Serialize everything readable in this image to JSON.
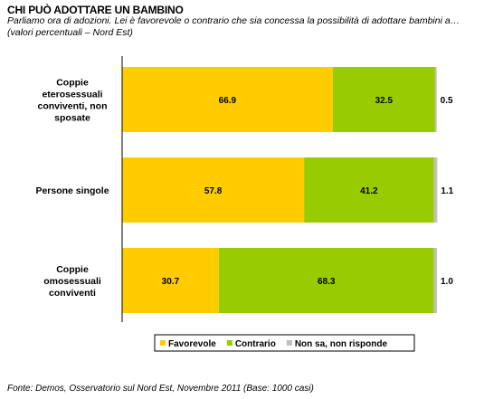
{
  "title": "CHI PUÒ ADOTTARE UN BAMBINO",
  "subtitle": "Parliamo ora di adozioni. Lei è favorevole o contrario che sia concessa la possibilità di adottare bambini a… (valori percentuali – Nord Est)",
  "source": "Fonte: Demos, Osservatorio sul Nord Est, Novembre  2011 (Base: 1000 casi)",
  "chart_data": {
    "type": "bar",
    "orientation": "horizontal",
    "stacked": true,
    "categories": [
      [
        "Coppie",
        "eterosessuali",
        "conviventi, non",
        "sposate"
      ],
      [
        "Persone singole"
      ],
      [
        "Coppie",
        "omosessuali",
        "conviventi"
      ]
    ],
    "series": [
      {
        "name": "Favorevole",
        "color": "#FFCC00",
        "values": [
          66.9,
          57.8,
          30.7
        ],
        "labels": [
          "66.9",
          "57.8",
          "30.7"
        ]
      },
      {
        "name": "Contrario",
        "color": "#99CC00",
        "values": [
          32.5,
          41.2,
          68.3
        ],
        "labels": [
          "32.5",
          "41.2",
          "68.3"
        ]
      },
      {
        "name": "Non sa, non risponde",
        "color": "#C0C0C0",
        "values": [
          0.5,
          1.1,
          1.0
        ],
        "labels": [
          "0.5",
          "1.1",
          "1.0"
        ]
      }
    ],
    "xlim": [
      0,
      100
    ],
    "grid": false,
    "legend_position": "bottom"
  }
}
